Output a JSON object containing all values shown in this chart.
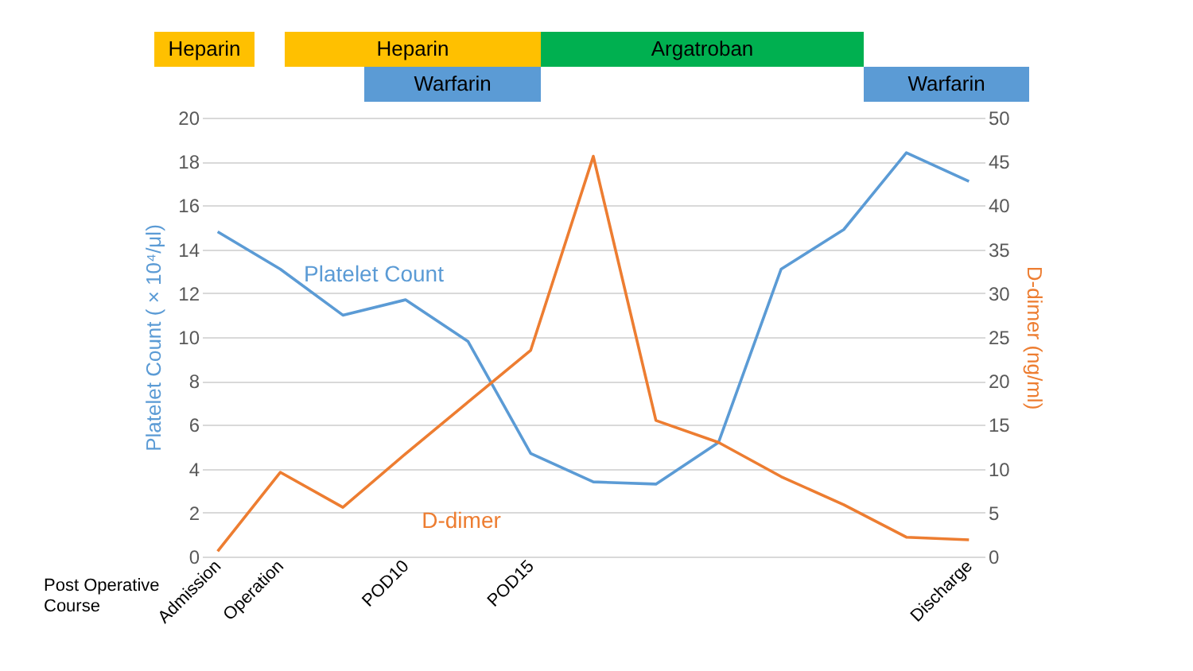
{
  "chart_data": [
    {
      "type": "other",
      "annotations": [
        "Heparin",
        "Heparin",
        "Warfarin",
        "Argatroban",
        "Warfarin"
      ],
      "colors": [
        "#ffc000",
        "#ffc000",
        "#5b9bd5",
        "#00b050",
        "#5b9bd5"
      ]
    },
    {
      "type": "line",
      "categories": [
        "Admission",
        "Operation",
        null,
        "POD10",
        null,
        "POD15",
        null,
        null,
        null,
        null,
        null,
        null,
        "Discharge"
      ],
      "xlabel": "Post Operative Course",
      "ylabel": "Platelet Count ( × 10⁴/μl)",
      "y2label": "D-dimer (ng/ml)",
      "ylim": [
        0,
        20
      ],
      "yticks": [
        0,
        2,
        4,
        6,
        8,
        10,
        12,
        14,
        16,
        18,
        20
      ],
      "y2lim": [
        0,
        50
      ],
      "y2ticks": [
        0,
        5,
        10,
        15,
        20,
        25,
        30,
        35,
        40,
        45,
        50
      ],
      "grid": "y",
      "marker": "none",
      "line_style": "solid",
      "series": [
        {
          "name": "Platelet Count",
          "color": "#5b9bd5",
          "values": [
            14.8,
            13.1,
            11.0,
            11.7,
            9.8,
            4.7,
            3.4,
            3.3,
            5.2,
            13.1,
            14.9,
            18.4,
            17.1
          ]
        },
        {
          "name": "D-dimer",
          "color": "#ed7d31",
          "axis": "y2",
          "values": [
            0.6,
            9.6,
            5.6,
            11.7,
            17.6,
            23.5,
            45.6,
            15.5,
            13.0,
            9.1,
            5.9,
            2.2,
            1.9
          ]
        }
      ]
    }
  ]
}
